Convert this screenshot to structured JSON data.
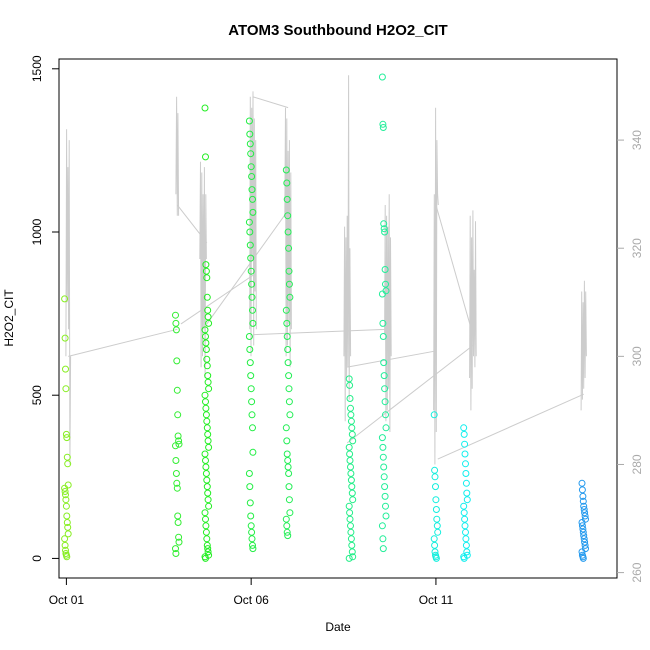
{
  "chart_data": {
    "type": "scatter",
    "title": "ATOM3 Southbound H2O2_CIT",
    "xlabel": "Date",
    "ylabel": "H2O2_CIT",
    "x_ticks": [
      "Oct 01",
      "Oct 06",
      "Oct 11"
    ],
    "x_tick_days": [
      1,
      6,
      11
    ],
    "xlim_days": [
      0.8,
      15.9
    ],
    "ylim": [
      -60,
      1530
    ],
    "y_ticks": [
      0,
      500,
      1000,
      1500
    ],
    "y2_ticks": [
      260,
      280,
      300,
      320,
      340
    ],
    "y2lim": [
      259,
      355
    ],
    "grid": false,
    "primary_series": {
      "name": "H2O2_CIT",
      "marker": "open circle",
      "color_gradient": "time (yellow-green to green to cyan to blue)",
      "clusters": [
        {
          "day": 1.0,
          "color": "#88ee22",
          "values": [
            795,
            675,
            580,
            520,
            380,
            370,
            310,
            290,
            225,
            215,
            205,
            195,
            180,
            160,
            130,
            110,
            95,
            75,
            60,
            40,
            25,
            15,
            10,
            5
          ]
        },
        {
          "day": 4.0,
          "color": "#33ee33",
          "values": [
            745,
            720,
            700,
            605,
            515,
            440,
            375,
            360,
            350,
            345,
            300,
            260,
            230,
            215,
            130,
            110,
            65,
            50,
            30,
            15
          ]
        },
        {
          "day": 4.8,
          "color": "#22ee22",
          "values": [
            1380,
            1230,
            900,
            880,
            860,
            800,
            760,
            740,
            720,
            700,
            680,
            660,
            640,
            610,
            590,
            560,
            540,
            520,
            500,
            480,
            460,
            440,
            420,
            400,
            380,
            360,
            340,
            320,
            300,
            280,
            260,
            240,
            220,
            200,
            180,
            160,
            140,
            120,
            100,
            80,
            60,
            40,
            30,
            20,
            10,
            5,
            0
          ]
        },
        {
          "day": 6.0,
          "color": "#22ee44",
          "values": [
            1340,
            1300,
            1270,
            1240,
            1200,
            1170,
            1130,
            1100,
            1060,
            1030,
            1000,
            960,
            920,
            880,
            840,
            800,
            760,
            720,
            680,
            640,
            600,
            560,
            520,
            480,
            440,
            400,
            325,
            260,
            220,
            170,
            130,
            100,
            80,
            60,
            40,
            30
          ]
        },
        {
          "day": 7.0,
          "color": "#22ee55",
          "values": [
            1190,
            1150,
            1100,
            1050,
            1000,
            950,
            880,
            840,
            800,
            760,
            720,
            680,
            640,
            600,
            560,
            520,
            480,
            440,
            400,
            360,
            320,
            300,
            280,
            260,
            220,
            180,
            140,
            120,
            100,
            80,
            70
          ]
        },
        {
          "day": 8.7,
          "color": "#22ee88",
          "values": [
            550,
            530,
            490,
            460,
            440,
            420,
            400,
            380,
            360,
            340,
            320,
            300,
            280,
            260,
            240,
            220,
            200,
            180,
            160,
            140,
            120,
            100,
            80,
            60,
            40,
            20,
            5,
            0
          ]
        },
        {
          "day": 9.6,
          "color": "#22ee99",
          "values": [
            1475,
            1330,
            1320,
            1025,
            1010,
            1000,
            885,
            840,
            820,
            810,
            720,
            680,
            600,
            560,
            520,
            480,
            440,
            400,
            370,
            340,
            310,
            280,
            250,
            220,
            190,
            160,
            130,
            100,
            60,
            30
          ]
        },
        {
          "day": 11.0,
          "color": "#11eedd",
          "values": [
            440,
            270,
            250,
            220,
            180,
            150,
            120,
            100,
            80,
            60,
            40,
            20,
            10,
            5,
            0
          ]
        },
        {
          "day": 11.8,
          "color": "#11eeee",
          "values": [
            400,
            380,
            350,
            320,
            290,
            260,
            230,
            200,
            180,
            160,
            140,
            120,
            100,
            80,
            60,
            40,
            20,
            10,
            5,
            0
          ]
        },
        {
          "day": 15.0,
          "color": "#2299ee",
          "values": [
            230,
            210,
            190,
            175,
            160,
            150,
            140,
            130,
            120,
            110,
            100,
            90,
            80,
            70,
            60,
            50,
            40,
            30,
            20,
            10,
            5,
            0
          ]
        }
      ]
    },
    "secondary_series": {
      "color": "#cccccc",
      "style": "thin line",
      "spikes": [
        {
          "day": 1.05,
          "values": [
            300,
            342,
            310,
            335,
            305,
            340,
            280,
            300
          ]
        },
        {
          "day": 4.0,
          "values": [
            330,
            348,
            326,
            345,
            326
          ]
        },
        {
          "day": 4.7,
          "values": [
            318,
            336,
            298,
            334,
            300,
            330,
            305,
            335,
            296,
            330,
            318
          ]
        },
        {
          "day": 6.05,
          "values": [
            305,
            348,
            300,
            346,
            318,
            349,
            302,
            344,
            312,
            340,
            305
          ]
        },
        {
          "day": 7.0,
          "values": [
            326,
            346,
            300,
            344,
            302,
            338,
            306,
            340,
            298,
            334,
            305
          ]
        },
        {
          "day": 8.6,
          "values": [
            300,
            324,
            288,
            322,
            296,
            326,
            298,
            352,
            292,
            320,
            300
          ]
        },
        {
          "day": 9.7,
          "values": [
            304,
            328,
            288,
            326,
            290,
            324,
            294,
            330,
            286,
            322,
            300
          ]
        },
        {
          "day": 11.0,
          "values": [
            290,
            330,
            280,
            346,
            286,
            340,
            330,
            328
          ]
        },
        {
          "day": 12.0,
          "values": [
            296,
            326,
            290,
            322,
            294,
            327,
            300,
            316,
            298,
            325,
            300
          ]
        },
        {
          "day": 15.0,
          "values": [
            290,
            312,
            292,
            310,
            294,
            314,
            296,
            312,
            300
          ]
        }
      ],
      "connectors": [
        [
          1.05,
          300,
          4.0,
          305
        ],
        [
          4.0,
          328,
          4.8,
          321
        ],
        [
          4.1,
          306,
          6.05,
          315
        ],
        [
          6.05,
          348,
          7.0,
          346
        ],
        [
          7.0,
          327,
          4.8,
          306
        ],
        [
          6.05,
          304,
          9.7,
          305
        ],
        [
          8.6,
          298,
          11.0,
          301
        ],
        [
          11.0,
          328,
          12.0,
          304
        ],
        [
          12.0,
          302,
          8.6,
          284
        ],
        [
          11.05,
          281,
          15.0,
          293
        ]
      ]
    }
  }
}
